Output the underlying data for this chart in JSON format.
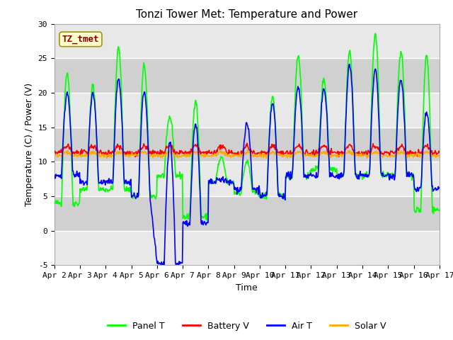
{
  "title": "Tonzi Tower Met: Temperature and Power",
  "xlabel": "Time",
  "ylabel": "Temperature (C) / Power (V)",
  "ylim": [
    -5,
    30
  ],
  "xlim": [
    0,
    15
  ],
  "x_tick_labels": [
    "Apr 2",
    "Apr 3",
    "Apr 4",
    "Apr 5",
    "Apr 6",
    "Apr 7",
    "Apr 8",
    "Apr 9",
    "Apr 10",
    "Apr 11",
    "Apr 12",
    "Apr 13",
    "Apr 14",
    "Apr 15",
    "Apr 16",
    "Apr 17"
  ],
  "yticks": [
    -5,
    0,
    5,
    10,
    15,
    20,
    25,
    30
  ],
  "legend_labels": [
    "Panel T",
    "Battery V",
    "Air T",
    "Solar V"
  ],
  "legend_colors": [
    "#00ff00",
    "#ff0000",
    "#0000ff",
    "#ffaa00"
  ],
  "bg_color": "#d8d8d8",
  "plot_bg_color": "#d8d8d8",
  "band_color_light": "#e8e8e8",
  "band_color_dark": "#d0d0d0",
  "annotation_text": "TZ_tmet",
  "annotation_color": "#880000",
  "annotation_bg": "#ffffcc",
  "annotation_edge": "#999900",
  "line_width": 1.2,
  "title_fontsize": 11,
  "tick_fontsize": 8,
  "label_fontsize": 9
}
